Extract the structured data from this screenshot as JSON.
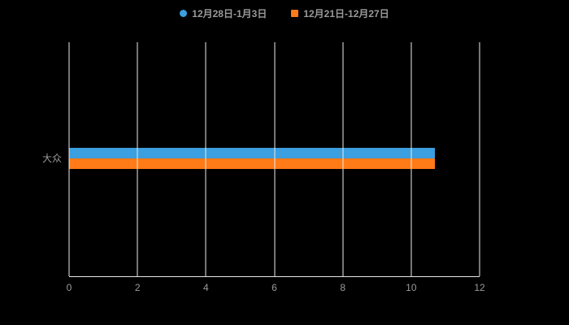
{
  "chart_data": {
    "type": "bar",
    "orientation": "horizontal",
    "title": "",
    "xlabel": "",
    "ylabel": "",
    "categories": [
      "大众"
    ],
    "series": [
      {
        "name": "12月28日-1月3日",
        "values": [
          10.7
        ],
        "color": "#3b9fe0",
        "marker": "circle"
      },
      {
        "name": "12月21日-12月27日",
        "values": [
          10.7
        ],
        "color": "#ff7b17",
        "marker": "square"
      }
    ],
    "xlim": [
      0,
      12
    ],
    "xticks": [
      0,
      2,
      4,
      6,
      8,
      10,
      12
    ],
    "grid": true,
    "legend_position": "top"
  },
  "colors": {
    "background": "#000000",
    "grid": "#ececec",
    "axis": "#e6e6e6",
    "text": "#9a9a9a"
  }
}
